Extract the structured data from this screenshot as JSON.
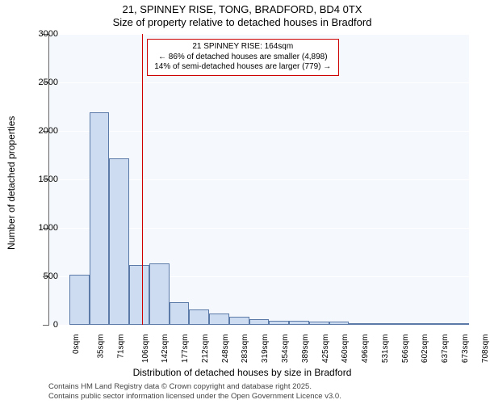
{
  "chart": {
    "type": "histogram",
    "title_line1": "21, SPINNEY RISE, TONG, BRADFORD, BD4 0TX",
    "title_line2": "Size of property relative to detached houses in Bradford",
    "title_fontsize": 13,
    "y_axis": {
      "label": "Number of detached properties",
      "label_fontsize": 12,
      "min": 0,
      "max": 3000,
      "tick_step": 500,
      "ticks": [
        0,
        500,
        1000,
        1500,
        2000,
        2500,
        3000
      ]
    },
    "x_axis": {
      "label": "Distribution of detached houses by size in Bradford",
      "label_fontsize": 12,
      "tick_labels": [
        "0sqm",
        "35sqm",
        "71sqm",
        "106sqm",
        "142sqm",
        "177sqm",
        "212sqm",
        "248sqm",
        "283sqm",
        "319sqm",
        "354sqm",
        "389sqm",
        "425sqm",
        "460sqm",
        "496sqm",
        "531sqm",
        "566sqm",
        "602sqm",
        "637sqm",
        "673sqm",
        "708sqm"
      ],
      "tick_fontsize": 10
    },
    "bars": {
      "values": [
        0,
        520,
        2190,
        1720,
        620,
        630,
        230,
        160,
        120,
        80,
        60,
        40,
        40,
        30,
        30,
        20,
        15,
        10,
        8,
        5,
        3
      ],
      "fill_color": "#cddcf0",
      "border_color": "#5b7aa8",
      "count": 21
    },
    "marker": {
      "value_sqm": 164,
      "color": "#d00000",
      "annotation": {
        "line1": "21 SPINNEY RISE: 164sqm",
        "line2": "← 86% of detached houses are smaller (4,898)",
        "line3": "14% of semi-detached houses are larger (779) →",
        "border_color": "#cc0000",
        "background_color": "#ffffff",
        "fontsize": 10
      }
    },
    "background_color": "#ffffff",
    "plot_background_color": "#f5f8fc",
    "grid_color": "#ffffff",
    "axis_color": "#666666"
  },
  "footer": {
    "line1": "Contains HM Land Registry data © Crown copyright and database right 2025.",
    "line2": "Contains public sector information licensed under the Open Government Licence v3.0."
  }
}
